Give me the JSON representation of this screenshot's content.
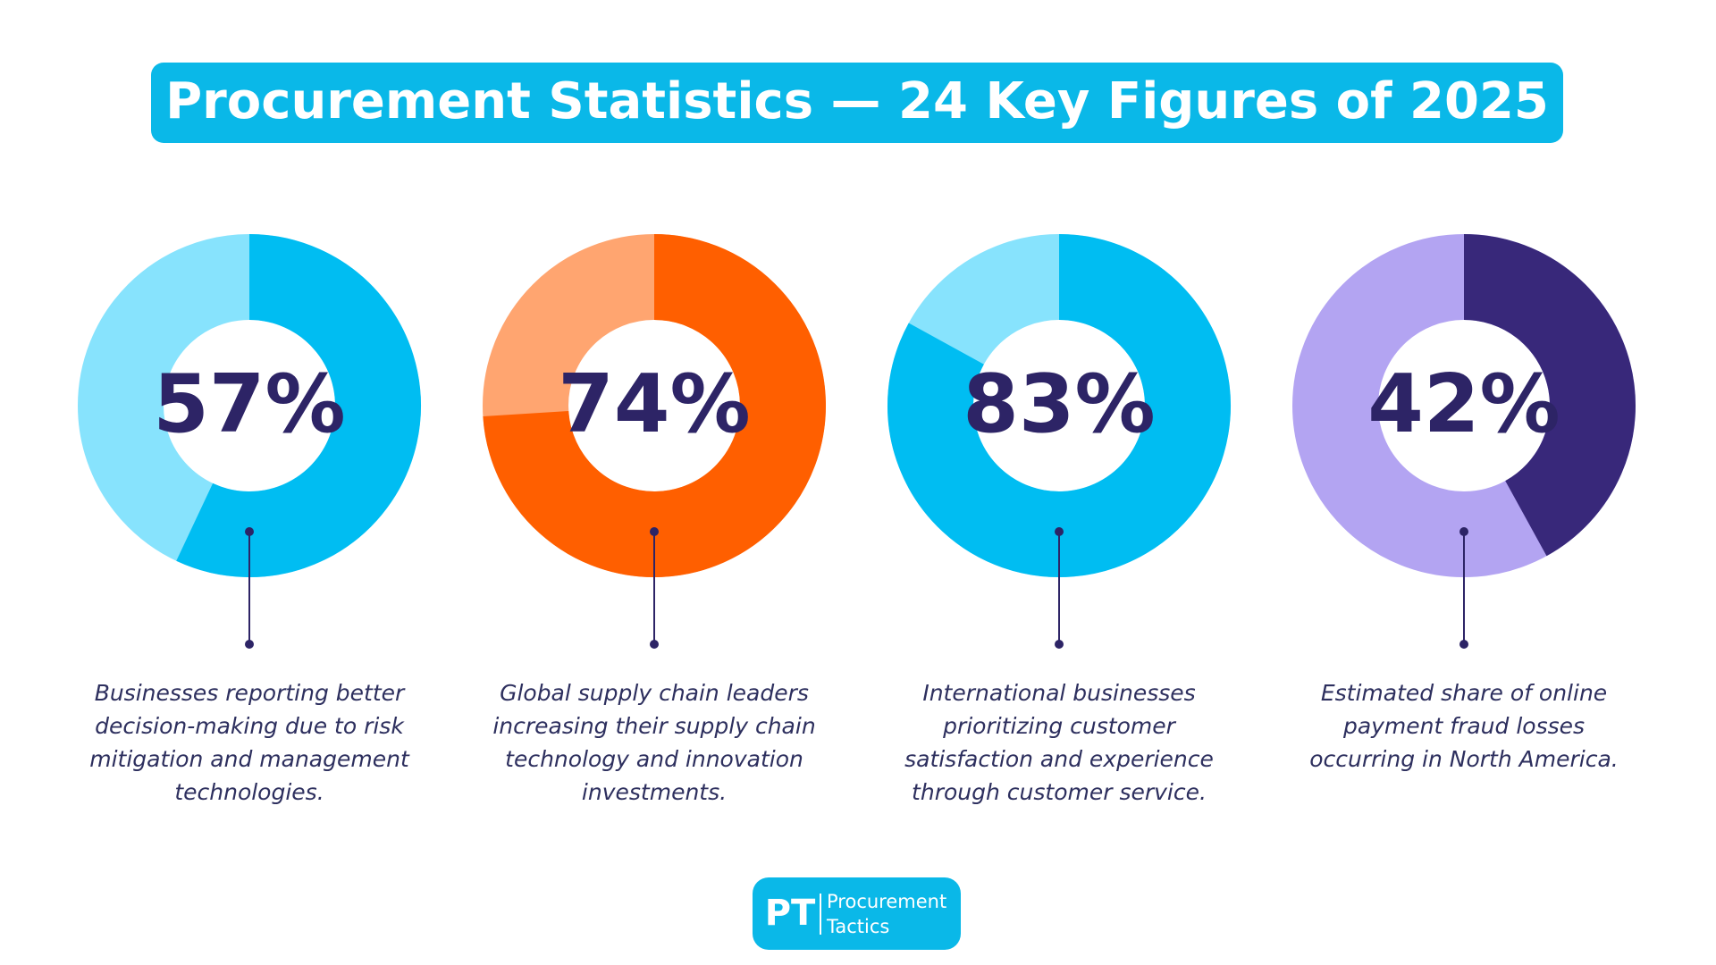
{
  "title": "Procurement Statistics — 24 Key Figures of 2025",
  "chart_data": [
    {
      "type": "donut",
      "values": [
        57
      ],
      "value_labels": [
        "57%"
      ],
      "color": "#00bdf2",
      "track_color": "#87e3fd",
      "description_lines": [
        "Businesses reporting better",
        "decision-making due to risk",
        "mitigation and management",
        "technologies."
      ]
    },
    {
      "type": "donut",
      "values": [
        74
      ],
      "value_labels": [
        "74%"
      ],
      "color": "#ff5f00",
      "track_color": "#ffa570",
      "description_lines": [
        "Global supply chain leaders",
        "increasing their supply chain",
        "technology and innovation",
        "investments."
      ]
    },
    {
      "type": "donut",
      "values": [
        83
      ],
      "value_labels": [
        "83%"
      ],
      "color": "#00bdf2",
      "track_color": "#87e3fd",
      "description_lines": [
        "International businesses",
        "prioritizing customer",
        "satisfaction and experience",
        "through customer service."
      ]
    },
    {
      "type": "donut",
      "values": [
        42
      ],
      "value_labels": [
        "42%"
      ],
      "color": "#38287a",
      "track_color": "#b3a4f2",
      "description_lines": [
        "Estimated share of online",
        "payment fraud losses",
        "occurring in North America."
      ]
    }
  ],
  "logo": {
    "mark": "PT",
    "lines": [
      "Procurement",
      "Tactics"
    ]
  }
}
